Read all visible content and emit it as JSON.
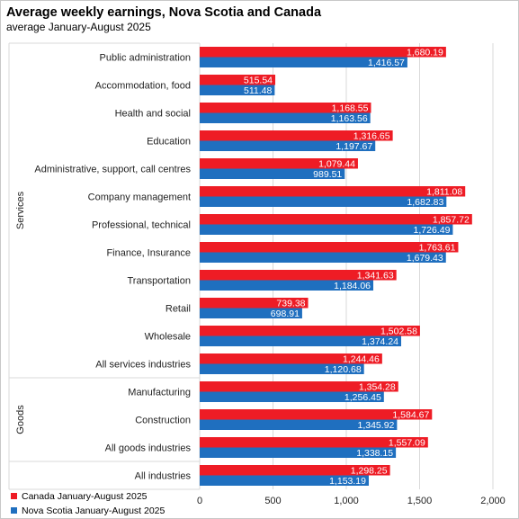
{
  "chart_data": {
    "type": "bar",
    "orientation": "horizontal",
    "title": "Average weekly earnings, Nova Scotia and Canada",
    "subtitle": "average January-August 2025",
    "categories": [
      "Public administration",
      "Accommodation, food",
      "Health and social",
      "Education",
      "Administrative, support, call centres",
      "Company management",
      "Professional, technical",
      "Finance, Insurance",
      "Transportation",
      "Retail",
      "Wholesale",
      "All services industries",
      "Manufacturing",
      "Construction",
      "All goods industries",
      "All industries"
    ],
    "groups": [
      {
        "label": "Services",
        "from": 0,
        "to": 11
      },
      {
        "label": "Goods",
        "from": 12,
        "to": 14
      },
      {
        "label": "",
        "from": 15,
        "to": 15
      }
    ],
    "series": [
      {
        "name": "Canada January-August 2025",
        "color": "#ee1c25",
        "values": [
          1680.19,
          515.54,
          1168.55,
          1316.65,
          1079.44,
          1811.08,
          1857.72,
          1763.61,
          1341.63,
          739.38,
          1502.58,
          1244.46,
          1354.28,
          1584.67,
          1557.09,
          1298.25
        ],
        "labels": [
          "1,680.19",
          "515.54",
          "1,168.55",
          "1,316.65",
          "1,079.44",
          "1,811.08",
          "1,857.72",
          "1,763.61",
          "1,341.63",
          "739.38",
          "1,502.58",
          "1,244.46",
          "1,354.28",
          "1,584.67",
          "1,557.09",
          "1,298.25"
        ]
      },
      {
        "name": "Nova Scotia January-August 2025",
        "color": "#1f6fbf",
        "values": [
          1416.57,
          511.48,
          1163.56,
          1197.67,
          989.51,
          1682.83,
          1726.49,
          1679.43,
          1184.06,
          698.91,
          1374.24,
          1120.68,
          1256.45,
          1345.92,
          1338.15,
          1153.19
        ],
        "labels": [
          "1,416.57",
          "511.48",
          "1,163.56",
          "1,197.67",
          "989.51",
          "1,682.83",
          "1,726.49",
          "1,679.43",
          "1,184.06",
          "698.91",
          "1,374.24",
          "1,120.68",
          "1,256.45",
          "1,345.92",
          "1,338.15",
          "1,153.19"
        ]
      }
    ],
    "xlim": [
      0,
      2000
    ],
    "xticks": [
      0,
      500,
      1000,
      1500,
      2000
    ],
    "xtick_labels": [
      "0",
      "500",
      "1,000",
      "1,500",
      "2,000"
    ],
    "grid": true,
    "legend": "bottom-left"
  }
}
